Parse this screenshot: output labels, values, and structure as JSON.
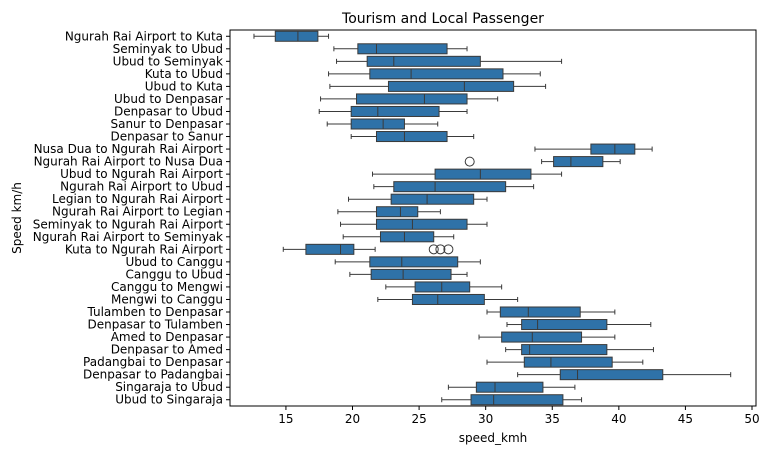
{
  "chart_data": {
    "type": "boxplot",
    "orientation": "horizontal",
    "title": "Tourism and Local Passenger",
    "xlabel": "speed_kmh",
    "ylabel": "Speed km/h",
    "xlim": [
      10.8,
      50.3
    ],
    "xticks": [
      15,
      20,
      25,
      30,
      35,
      40,
      45,
      50
    ],
    "grid": false,
    "box_color": "#2f72a8",
    "line_color": "#3a3a3a",
    "categories": [
      {
        "label": "Ngurah Rai Airport to Kuta",
        "whislo": 12.6,
        "q1": 14.2,
        "med": 15.9,
        "q3": 17.4,
        "whishi": 18.2,
        "fliers": []
      },
      {
        "label": "Seminyak to Ubud",
        "whislo": 18.6,
        "q1": 20.4,
        "med": 21.8,
        "q3": 27.1,
        "whishi": 28.6,
        "fliers": []
      },
      {
        "label": "Ubud to Seminyak",
        "whislo": 18.8,
        "q1": 21.1,
        "med": 23.1,
        "q3": 29.6,
        "whishi": 35.7,
        "fliers": []
      },
      {
        "label": "Kuta to Ubud",
        "whislo": 18.2,
        "q1": 21.3,
        "med": 24.4,
        "q3": 31.3,
        "whishi": 34.1,
        "fliers": []
      },
      {
        "label": "Ubud to Kuta",
        "whislo": 18.3,
        "q1": 22.7,
        "med": 28.4,
        "q3": 32.1,
        "whishi": 34.5,
        "fliers": []
      },
      {
        "label": "Ubud to Denpasar",
        "whislo": 17.6,
        "q1": 20.3,
        "med": 25.4,
        "q3": 28.6,
        "whishi": 30.9,
        "fliers": []
      },
      {
        "label": "Denpasar to Ubud",
        "whislo": 17.5,
        "q1": 19.9,
        "med": 21.9,
        "q3": 26.5,
        "whishi": 28.6,
        "fliers": []
      },
      {
        "label": "Sanur to Denpasar",
        "whislo": 18.1,
        "q1": 19.9,
        "med": 22.3,
        "q3": 23.9,
        "whishi": 26.4,
        "fliers": []
      },
      {
        "label": "Denpasar to Sanur",
        "whislo": 19.9,
        "q1": 21.8,
        "med": 23.9,
        "q3": 27.1,
        "whishi": 29.1,
        "fliers": []
      },
      {
        "label": "Nusa Dua to Ngurah Rai Airport",
        "whislo": 33.7,
        "q1": 37.9,
        "med": 39.7,
        "q3": 41.2,
        "whishi": 42.5,
        "fliers": []
      },
      {
        "label": "Ngurah Rai Airport to Nusa Dua",
        "whislo": 34.2,
        "q1": 35.1,
        "med": 36.4,
        "q3": 38.8,
        "whishi": 40.1,
        "fliers": [
          28.8
        ]
      },
      {
        "label": "Ubud to Ngurah Rai Airport",
        "whislo": 21.5,
        "q1": 26.2,
        "med": 29.6,
        "q3": 33.4,
        "whishi": 35.7,
        "fliers": []
      },
      {
        "label": "Ngurah Rai Airport to Ubud",
        "whislo": 21.6,
        "q1": 23.1,
        "med": 26.2,
        "q3": 31.5,
        "whishi": 33.6,
        "fliers": []
      },
      {
        "label": "Legian to Ngurah Rai Airport",
        "whislo": 19.7,
        "q1": 22.9,
        "med": 25.6,
        "q3": 29.1,
        "whishi": 30.1,
        "fliers": []
      },
      {
        "label": "Ngurah Rai Airport to Legian",
        "whislo": 18.9,
        "q1": 21.8,
        "med": 23.6,
        "q3": 24.9,
        "whishi": 26.6,
        "fliers": []
      },
      {
        "label": "Seminyak to Ngurah Rai Airport",
        "whislo": 19.1,
        "q1": 21.8,
        "med": 24.5,
        "q3": 28.6,
        "whishi": 30.1,
        "fliers": []
      },
      {
        "label": "Ngurah Rai Airport to Seminyak",
        "whislo": 19.3,
        "q1": 22.1,
        "med": 23.9,
        "q3": 26.1,
        "whishi": 27.6,
        "fliers": []
      },
      {
        "label": "Kuta to Ngurah Rai Airport",
        "whislo": 14.8,
        "q1": 16.5,
        "med": 19.1,
        "q3": 20.1,
        "whishi": 21.7,
        "fliers": [
          26.1,
          26.6,
          27.2
        ]
      },
      {
        "label": "Ubud to Canggu",
        "whislo": 18.7,
        "q1": 21.3,
        "med": 23.7,
        "q3": 27.9,
        "whishi": 29.6,
        "fliers": []
      },
      {
        "label": "Canggu to Ubud",
        "whislo": 19.8,
        "q1": 21.4,
        "med": 23.8,
        "q3": 27.4,
        "whishi": 28.6,
        "fliers": []
      },
      {
        "label": "Canggu to Mengwi",
        "whislo": 22.5,
        "q1": 24.7,
        "med": 26.7,
        "q3": 28.8,
        "whishi": 31.2,
        "fliers": []
      },
      {
        "label": "Mengwi to Canggu",
        "whislo": 21.9,
        "q1": 24.5,
        "med": 26.4,
        "q3": 29.9,
        "whishi": 32.4,
        "fliers": []
      },
      {
        "label": "Tulamben to Denpasar",
        "whislo": 30.1,
        "q1": 31.1,
        "med": 33.2,
        "q3": 37.1,
        "whishi": 39.7,
        "fliers": []
      },
      {
        "label": "Denpasar to Tulamben",
        "whislo": 31.6,
        "q1": 32.7,
        "med": 33.9,
        "q3": 39.1,
        "whishi": 42.4,
        "fliers": []
      },
      {
        "label": "Amed to Denpasar",
        "whislo": 29.5,
        "q1": 31.2,
        "med": 33.5,
        "q3": 37.2,
        "whishi": 39.7,
        "fliers": []
      },
      {
        "label": "Denpasar to Amed",
        "whislo": 31.5,
        "q1": 32.7,
        "med": 33.3,
        "q3": 39.1,
        "whishi": 42.6,
        "fliers": []
      },
      {
        "label": "Padangbai to Denpasar",
        "whislo": 30.1,
        "q1": 32.9,
        "med": 34.9,
        "q3": 39.5,
        "whishi": 41.8,
        "fliers": []
      },
      {
        "label": "Denpasar to Padangbai",
        "whislo": 32.4,
        "q1": 35.6,
        "med": 36.9,
        "q3": 43.3,
        "whishi": 48.4,
        "fliers": []
      },
      {
        "label": "Singaraja to Ubud",
        "whislo": 27.2,
        "q1": 29.3,
        "med": 30.7,
        "q3": 34.3,
        "whishi": 36.7,
        "fliers": []
      },
      {
        "label": "Ubud to Singaraja",
        "whislo": 26.7,
        "q1": 28.9,
        "med": 30.6,
        "q3": 35.8,
        "whishi": 37.2,
        "fliers": []
      }
    ]
  }
}
